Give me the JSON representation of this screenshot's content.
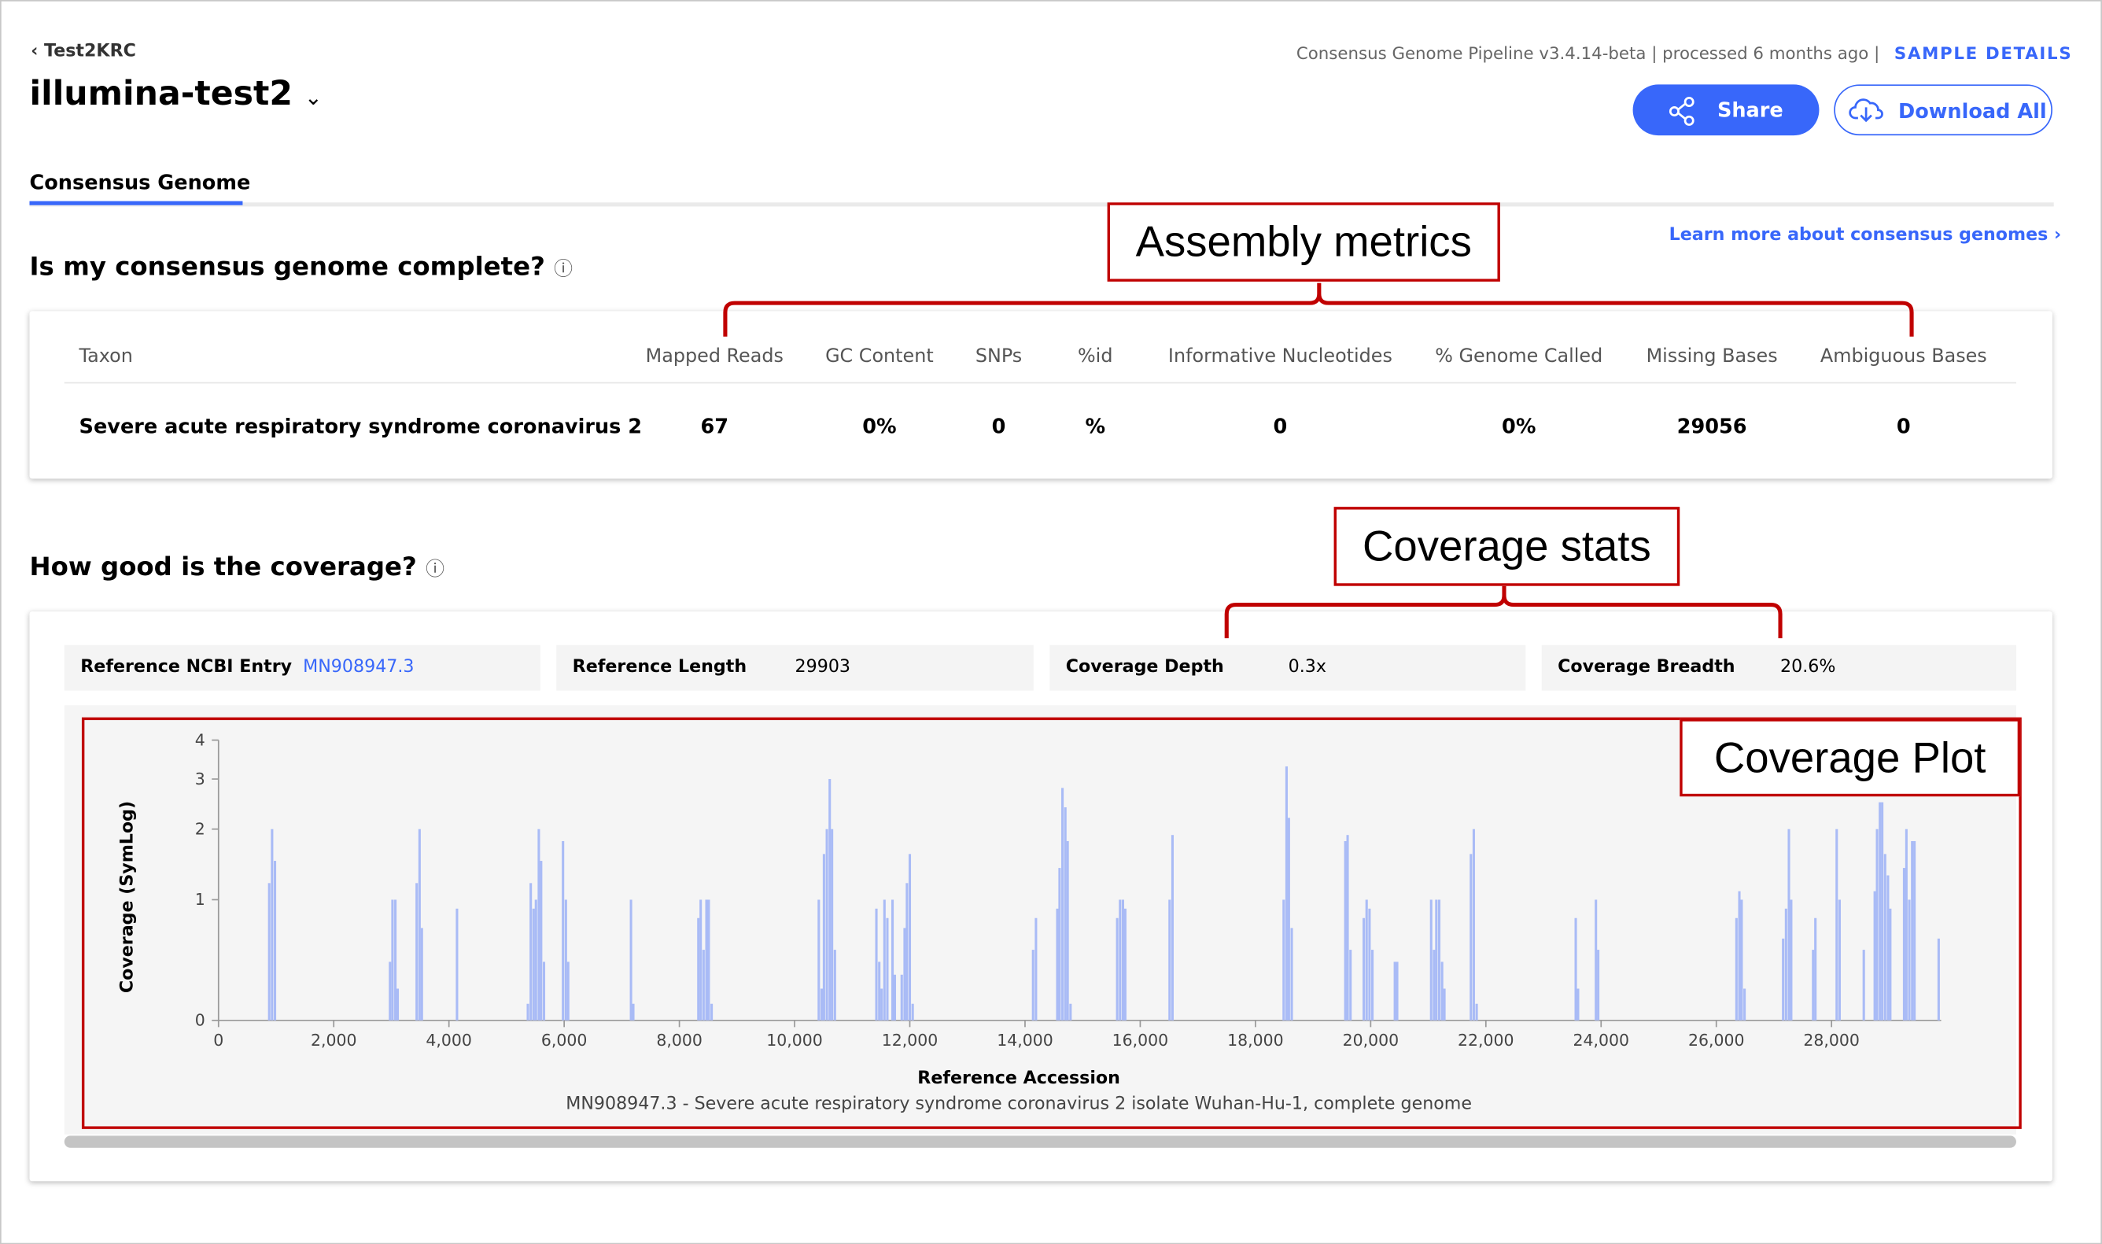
{
  "breadcrumb": "Test2KRC",
  "sample_name": "illumina-test2",
  "pipeline_info": "Consensus Genome Pipeline v3.4.14-beta | processed 6 months ago |",
  "sample_details_link": "SAMPLE DETAILS",
  "buttons": {
    "share": "Share",
    "download": "Download All"
  },
  "tab": "Consensus Genome",
  "section1": {
    "title": "Is my consensus genome complete?",
    "learn_more": "Learn more about consensus genomes"
  },
  "metrics_table": {
    "headers": [
      "Taxon",
      "Mapped Reads",
      "GC Content",
      "SNPs",
      "%id",
      "Informative Nucleotides",
      "% Genome Called",
      "Missing Bases",
      "Ambiguous Bases"
    ],
    "rows": [
      [
        "Severe acute respiratory syndrome coronavirus 2",
        "67",
        "0%",
        "0",
        "%",
        "0",
        "0%",
        "29056",
        "0"
      ]
    ]
  },
  "section2": {
    "title": "How good is the coverage?"
  },
  "coverage_stats": [
    {
      "label": "Reference NCBI Entry",
      "value": "MN908947.3"
    },
    {
      "label": "Reference Length",
      "value": "29903"
    },
    {
      "label": "Coverage Depth",
      "value": "0.3x"
    },
    {
      "label": "Coverage Breadth",
      "value": "20.6%"
    }
  ],
  "annotations": {
    "assembly": "Assembly metrics",
    "coverage_stats": "Coverage stats",
    "coverage_plot": "Coverage Plot"
  },
  "chart_data": {
    "type": "bar",
    "ylabel": "Coverage (SymLog)",
    "xlabel": "Reference Accession",
    "subtitle": "MN908947.3 - Severe acute respiratory syndrome coronavirus 2 isolate Wuhan-Hu-1, complete genome",
    "yscale": "symlog",
    "color": "#a9bbf6",
    "xlim": [
      0,
      29903
    ],
    "ylim": [
      0,
      4
    ],
    "yticks": [
      0,
      1,
      2,
      3,
      4
    ],
    "xticks": [
      0,
      {
        "value": 2000,
        "label": "2,000"
      },
      {
        "value": 4000,
        "label": "4,000"
      },
      {
        "value": 6000,
        "label": "6,000"
      },
      {
        "value": 8000,
        "label": "8,000"
      },
      {
        "value": 10000,
        "label": "10,000"
      },
      {
        "value": 12000,
        "label": "12,000"
      },
      {
        "value": 14000,
        "label": "14,000"
      },
      {
        "value": 16000,
        "label": "16,000"
      },
      {
        "value": 18000,
        "label": "18,000"
      },
      {
        "value": 20000,
        "label": "20,000"
      },
      {
        "value": 22000,
        "label": "22,000"
      },
      {
        "value": 24000,
        "label": "24,000"
      },
      {
        "value": 26000,
        "label": "26,000"
      },
      {
        "value": 28000,
        "label": "28,000"
      }
    ],
    "x": [
      880,
      930,
      980,
      2977,
      3020,
      3070,
      3110,
      3440,
      3490,
      3530,
      4140,
      5370,
      5420,
      5470,
      5510,
      5560,
      5600,
      5650,
      5980,
      6030,
      6070,
      7160,
      7200,
      8330,
      8370,
      8420,
      8470,
      8510,
      8560,
      10420,
      10470,
      10510,
      10560,
      10610,
      10650,
      10700,
      11420,
      11470,
      11510,
      11560,
      11610,
      11700,
      11740,
      11860,
      11910,
      11950,
      12000,
      12050,
      14140,
      14190,
      14560,
      14600,
      14650,
      14700,
      14740,
      14790,
      15600,
      15650,
      15700,
      15740,
      16510,
      16560,
      18490,
      18540,
      18580,
      18630,
      19560,
      19600,
      19650,
      19880,
      19930,
      19980,
      20030,
      20420,
      20460,
      21050,
      21100,
      21140,
      21190,
      21240,
      21280,
      21740,
      21790,
      21840,
      23560,
      23600,
      23910,
      23950,
      26350,
      26400,
      26440,
      26490,
      27160,
      27210,
      27260,
      27300,
      27680,
      27720,
      28090,
      28140,
      28560,
      28750,
      28790,
      28840,
      28880,
      28930,
      28980,
      29020,
      29260,
      29300,
      29350,
      29400,
      29440,
      29860
    ],
    "values": [
      1.2,
      2.0,
      1.5,
      0.4,
      1.0,
      1.0,
      0.2,
      1.2,
      2.0,
      0.7,
      0.9,
      0.1,
      1.2,
      0.9,
      1.0,
      2.0,
      1.5,
      0.4,
      1.8,
      1.0,
      0.4,
      1.0,
      0.1,
      0.8,
      1.0,
      0.5,
      1.0,
      1.0,
      0.1,
      1.0,
      0.2,
      1.6,
      2.0,
      3.0,
      2.0,
      0.5,
      0.9,
      0.4,
      0.2,
      1.0,
      0.8,
      1.0,
      0.3,
      0.3,
      0.7,
      1.2,
      1.6,
      0.1,
      0.5,
      0.8,
      0.9,
      1.4,
      2.8,
      2.4,
      1.8,
      0.1,
      0.8,
      1.0,
      1.0,
      0.9,
      1.0,
      1.9,
      1.0,
      3.3,
      2.2,
      0.7,
      1.8,
      1.9,
      0.5,
      0.8,
      1.0,
      0.9,
      0.5,
      0.4,
      0.4,
      1.0,
      0.5,
      1.0,
      1.0,
      0.4,
      0.2,
      1.6,
      2.0,
      0.1,
      0.8,
      0.2,
      1.0,
      0.5,
      0.8,
      1.1,
      1.0,
      0.2,
      0.6,
      0.9,
      2.0,
      1.0,
      0.5,
      0.8,
      2.0,
      1.0,
      0.5,
      1.1,
      2.0,
      2.5,
      2.5,
      1.6,
      1.3,
      0.9,
      1.4,
      2.0,
      1.0,
      1.8,
      1.8,
      0.6
    ]
  }
}
